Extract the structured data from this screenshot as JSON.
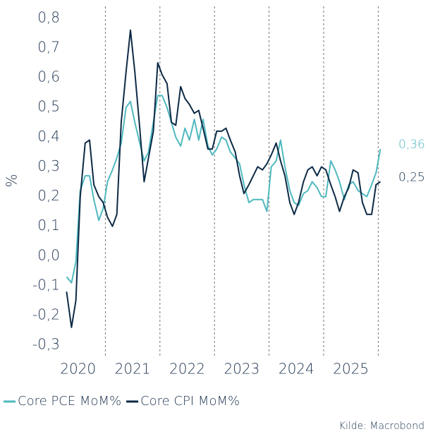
{
  "chart_data": {
    "type": "line",
    "y_label": "%",
    "source": "Kilde: Macrobond",
    "x": [
      2020.29,
      2020.38,
      2020.46,
      2020.54,
      2020.63,
      2020.71,
      2020.79,
      2020.88,
      2020.96,
      2021.04,
      2021.13,
      2021.21,
      2021.29,
      2021.38,
      2021.46,
      2021.54,
      2021.63,
      2021.71,
      2021.79,
      2021.88,
      2021.96,
      2022.04,
      2022.13,
      2022.21,
      2022.29,
      2022.38,
      2022.46,
      2022.54,
      2022.63,
      2022.71,
      2022.79,
      2022.88,
      2022.96,
      2023.04,
      2023.13,
      2023.21,
      2023.29,
      2023.38,
      2023.46,
      2023.54,
      2023.63,
      2023.71,
      2023.79,
      2023.88,
      2023.96,
      2024.04,
      2024.13,
      2024.21,
      2024.29,
      2024.38,
      2024.46,
      2024.54,
      2024.63,
      2024.71,
      2024.79,
      2024.88,
      2024.96,
      2025.04,
      2025.13,
      2025.21,
      2025.29,
      2025.38,
      2025.46,
      2025.54,
      2025.63,
      2025.71,
      2025.79,
      2025.88,
      2025.96,
      2026.04
    ],
    "series": [
      {
        "name": "Core PCE MoM%",
        "color": "#4fb9bf",
        "end_label": "0,36",
        "values": [
          -0.07,
          -0.09,
          -0.02,
          0.22,
          0.27,
          0.27,
          0.19,
          0.12,
          0.16,
          0.25,
          0.29,
          0.33,
          0.38,
          0.5,
          0.52,
          0.45,
          0.38,
          0.32,
          0.35,
          0.45,
          0.54,
          0.54,
          0.5,
          0.45,
          0.4,
          0.37,
          0.43,
          0.39,
          0.46,
          0.39,
          0.46,
          0.37,
          0.34,
          0.36,
          0.4,
          0.39,
          0.35,
          0.33,
          0.31,
          0.24,
          0.18,
          0.19,
          0.19,
          0.19,
          0.15,
          0.3,
          0.32,
          0.39,
          0.3,
          0.22,
          0.18,
          0.17,
          0.21,
          0.22,
          0.25,
          0.23,
          0.2,
          0.2,
          0.32,
          0.29,
          0.25,
          0.19,
          0.24,
          0.25,
          0.22,
          0.21,
          0.2,
          0.24,
          0.28,
          0.36
        ]
      },
      {
        "name": "Core CPI MoM%",
        "color": "#0d2a46",
        "end_label": "0,25",
        "values": [
          -0.12,
          -0.24,
          -0.15,
          0.2,
          0.38,
          0.39,
          0.24,
          0.2,
          0.18,
          0.13,
          0.1,
          0.14,
          0.45,
          0.62,
          0.76,
          0.62,
          0.43,
          0.25,
          0.33,
          0.42,
          0.65,
          0.61,
          0.58,
          0.45,
          0.44,
          0.57,
          0.53,
          0.51,
          0.48,
          0.49,
          0.43,
          0.36,
          0.36,
          0.42,
          0.42,
          0.43,
          0.39,
          0.35,
          0.27,
          0.21,
          0.24,
          0.27,
          0.3,
          0.29,
          0.31,
          0.34,
          0.38,
          0.32,
          0.27,
          0.18,
          0.14,
          0.18,
          0.25,
          0.29,
          0.3,
          0.27,
          0.3,
          0.29,
          0.24,
          0.2,
          0.15,
          0.2,
          0.23,
          0.29,
          0.28,
          0.18,
          0.14,
          0.14,
          0.24,
          0.25
        ]
      }
    ],
    "xlim": [
      2020,
      2026.2
    ],
    "xticks": [
      2021,
      2022,
      2023,
      2024,
      2025,
      2026
    ],
    "x_labels": [
      "2020",
      "2021",
      "2022",
      "2023",
      "2024",
      "2025"
    ],
    "ylim": [
      -0.34,
      0.84
    ],
    "yticks": [
      {
        "value": -0.3,
        "label": "-0,3"
      },
      {
        "value": -0.2,
        "label": "-0,2"
      },
      {
        "value": -0.1,
        "label": "-0,1"
      },
      {
        "value": 0,
        "label": "0,0"
      },
      {
        "value": 0.1,
        "label": "0,1"
      },
      {
        "value": 0.2,
        "label": "0,2"
      },
      {
        "value": 0.3,
        "label": "0,3"
      },
      {
        "value": 0.4,
        "label": "0,4"
      },
      {
        "value": 0.5,
        "label": "0,5"
      },
      {
        "value": 0.6,
        "label": "0,6"
      },
      {
        "value": 0.7,
        "label": "0,7"
      },
      {
        "value": 0.8,
        "label": "0,8"
      }
    ]
  }
}
